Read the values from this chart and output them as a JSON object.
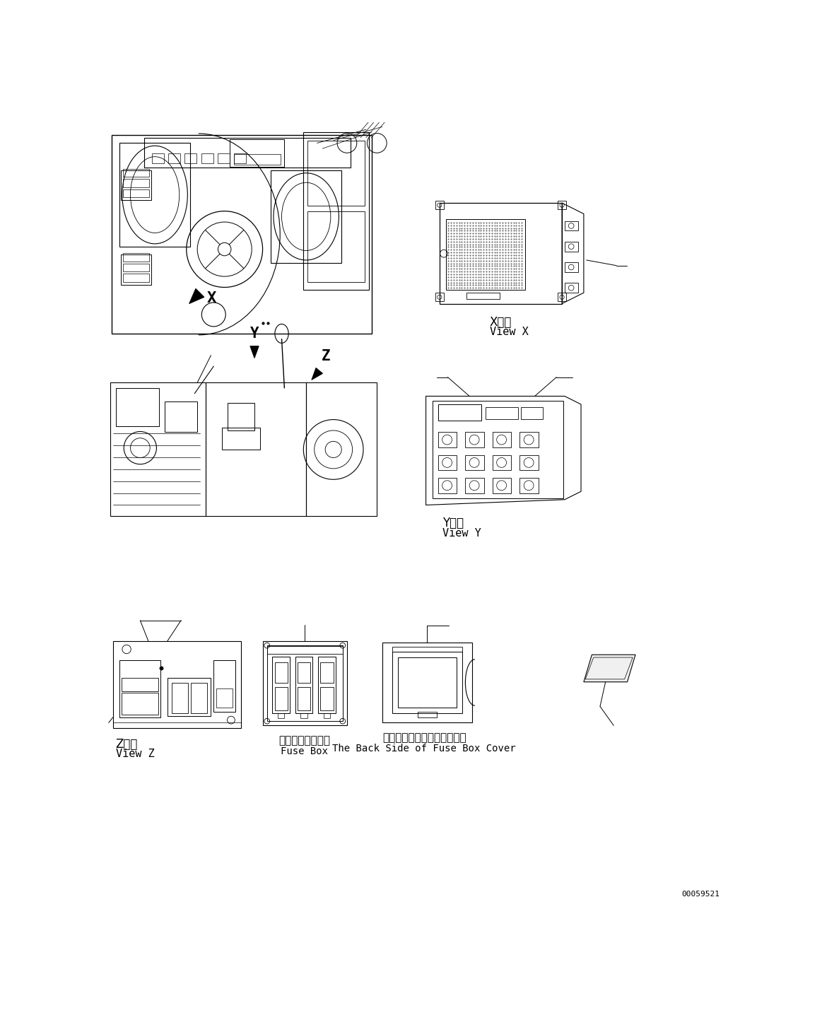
{
  "bg_color": "#ffffff",
  "line_color": "#000000",
  "fig_width": 11.63,
  "fig_height": 14.43,
  "dpi": 100,
  "part_number": "00059521",
  "labels": {
    "view_x_jp": "X　視",
    "view_x_en": "View X",
    "view_y_jp": "Y　視",
    "view_y_en": "View Y",
    "view_z_jp": "Z　視",
    "view_z_en": "View Z",
    "fuse_box_jp": "ヒューズボックス",
    "fuse_box_en": "Fuse Box",
    "fuse_box_cover_jp": "ヒューズボックスカバー裏側",
    "fuse_box_cover_en": "The Back Side of Fuse Box Cover"
  }
}
